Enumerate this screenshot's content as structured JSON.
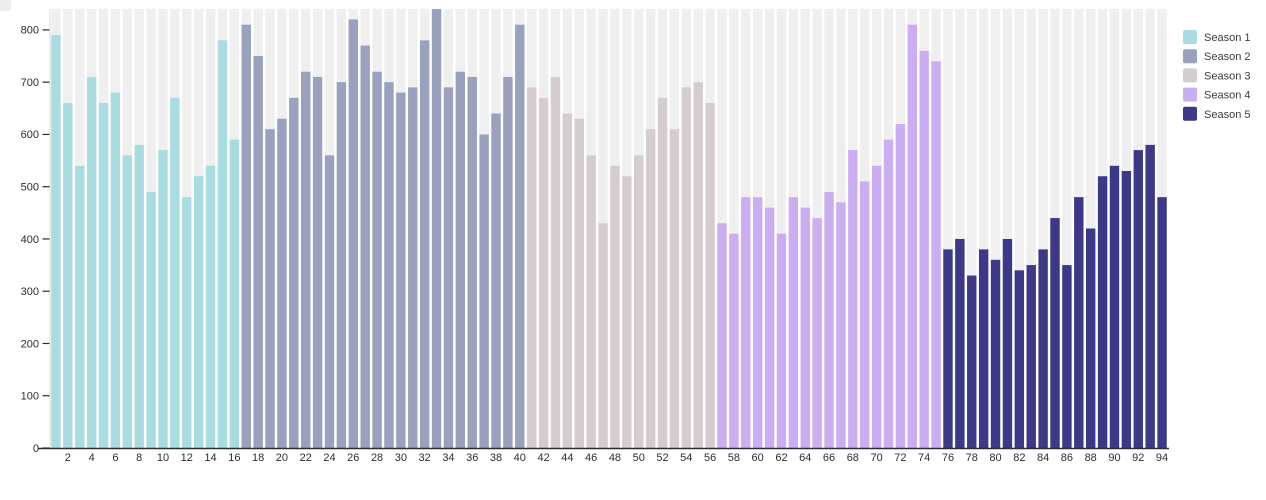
{
  "page": {
    "background_color": "#ffffff",
    "corner_artifact_color": "#ececec"
  },
  "chart_data": {
    "type": "bar",
    "title": "",
    "xlabel": "",
    "ylabel": "",
    "x_range": [
      1,
      94
    ],
    "xtick_step": 2,
    "ylim": [
      0,
      840
    ],
    "yticks": [
      0,
      100,
      200,
      300,
      400,
      500,
      600,
      700,
      800
    ],
    "grid": false,
    "legend_position": "top-right",
    "background_bars": true,
    "background_bar_color": "#f0eff0",
    "axis_line_color": "#2d2d2d",
    "yaxis_line_color": "#d9d9d9",
    "tick_label_color": "#2d2d2d",
    "legend_label_color": "#3c3c3c",
    "series": [
      {
        "name": "Season 1",
        "color": "#a9dce0",
        "start_episode": 1,
        "values": [
          790,
          660,
          540,
          710,
          660,
          680,
          560,
          580,
          490,
          570,
          670,
          480,
          520,
          540,
          780,
          590
        ]
      },
      {
        "name": "Season 2",
        "color": "#9aa0be",
        "start_episode": 17,
        "values": [
          810,
          750,
          610,
          630,
          670,
          720,
          710,
          560,
          700,
          820,
          770,
          720,
          700,
          680,
          690,
          780,
          840,
          690,
          720,
          710,
          600,
          640,
          710,
          810
        ]
      },
      {
        "name": "Season 3",
        "color": "#d5cccd",
        "start_episode": 41,
        "values": [
          690,
          670,
          710,
          640,
          630,
          560,
          430,
          540,
          520,
          560,
          610,
          670,
          610,
          690,
          700,
          660
        ]
      },
      {
        "name": "Season 4",
        "color": "#cbaef2",
        "start_episode": 57,
        "values": [
          430,
          410,
          480,
          480,
          460,
          410,
          480,
          460,
          440,
          490,
          470,
          570,
          510,
          540,
          590,
          620,
          810,
          760,
          740
        ]
      },
      {
        "name": "Season 5",
        "color": "#3d3888",
        "start_episode": 76,
        "values": [
          380,
          400,
          330,
          380,
          360,
          400,
          340,
          350,
          380,
          440,
          350,
          480,
          420,
          520,
          540,
          530,
          570,
          580,
          480
        ]
      }
    ]
  }
}
